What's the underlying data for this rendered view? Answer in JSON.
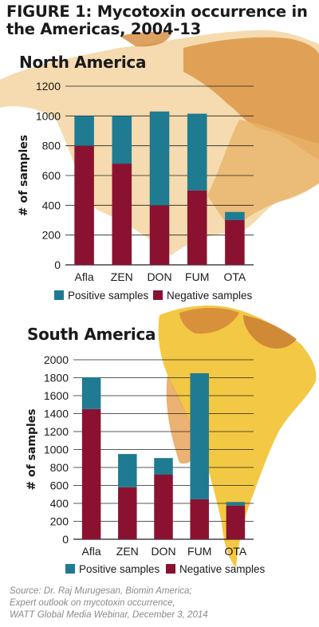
{
  "figure_title_line1": "FIGURE 1:  Mycotoxin occurrence in",
  "figure_title_line2": "the Americas, 2004-13",
  "colors": {
    "positive": "#1e7b91",
    "negative": "#8a1230",
    "map_light": "#f1cf94",
    "map_dark": "#d58a3a",
    "map_yellow": "#f2c230"
  },
  "chart_data": [
    {
      "type": "bar",
      "stacked": true,
      "title": "North America",
      "ylabel": "# of samples",
      "xlabel": "",
      "ylim": [
        0,
        1200
      ],
      "yticks": [
        0,
        200,
        400,
        600,
        800,
        1000,
        1200
      ],
      "categories": [
        "Afla",
        "ZEN",
        "DON",
        "FUM",
        "OTA"
      ],
      "series": [
        {
          "name": "Negative samples",
          "values": [
            800,
            680,
            400,
            500,
            300
          ]
        },
        {
          "name": "Positive samples",
          "values": [
            200,
            320,
            630,
            515,
            55
          ]
        }
      ],
      "legend": [
        "Positive samples",
        "Negative samples"
      ],
      "grid": true,
      "legend_position": "bottom"
    },
    {
      "type": "bar",
      "stacked": true,
      "title": "South America",
      "ylabel": "# of samples",
      "xlabel": "",
      "ylim": [
        0,
        2000
      ],
      "yticks": [
        0,
        200,
        400,
        600,
        800,
        1000,
        1200,
        1400,
        1600,
        1800,
        2000
      ],
      "categories": [
        "Afla",
        "ZEN",
        "DON",
        "FUM",
        "OTA"
      ],
      "series": [
        {
          "name": "Negative samples",
          "values": [
            1450,
            580,
            720,
            445,
            375
          ]
        },
        {
          "name": "Positive samples",
          "values": [
            355,
            370,
            185,
            1405,
            40
          ]
        }
      ],
      "legend": [
        "Positive samples",
        "Negative samples"
      ],
      "grid": true,
      "legend_position": "bottom"
    }
  ],
  "source_lines": [
    "Source: Dr. Raj Murugesan, Biomin America;",
    "Expert outlook on mycotoxin occurrence,",
    "WATT Global Media Webinar, December 3, 2014"
  ]
}
